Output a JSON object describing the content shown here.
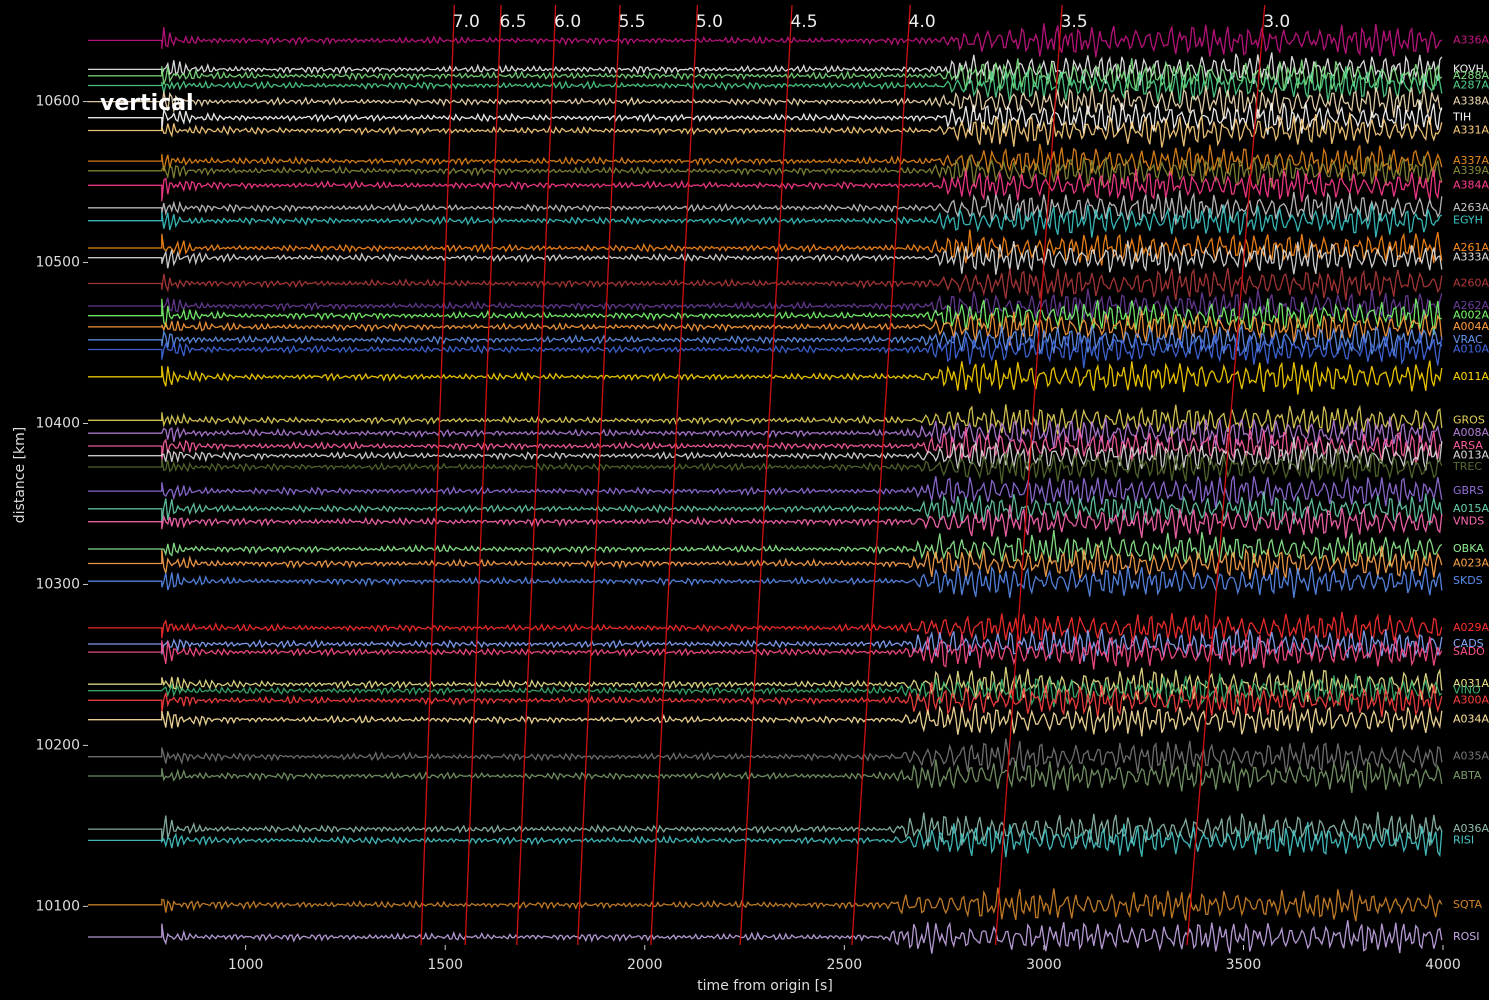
{
  "chart_data": {
    "type": "seismogram",
    "title": "vertical",
    "x_label": "time from origin [s]",
    "y_label": "distance [km]",
    "xlim": [
      605,
      4000
    ],
    "ylim": [
      10076,
      10660
    ],
    "xticks": [
      1000,
      1500,
      2000,
      2500,
      3000,
      3500,
      4000
    ],
    "yticks": [
      10100,
      10200,
      10300,
      10400,
      10500,
      10600
    ],
    "onset_time": 790,
    "moveout_color": "#d01010",
    "moveout_velocities": [
      {
        "value": 7,
        "label": "7.0"
      },
      {
        "value": 6.5,
        "label": "6.5"
      },
      {
        "value": 6,
        "label": "6.0"
      },
      {
        "value": 5.5,
        "label": "5.5"
      },
      {
        "value": 5,
        "label": "5.0"
      },
      {
        "value": 4.5,
        "label": "4.5"
      },
      {
        "value": 4,
        "label": "4.0"
      },
      {
        "value": 3.5,
        "label": "3.5"
      },
      {
        "value": 3,
        "label": "3.0"
      }
    ],
    "series": [
      {
        "name": "A336A",
        "color": "#c71585",
        "distance": 10638
      },
      {
        "name": "KOVH",
        "color": "#f0f0f0",
        "distance": 10620
      },
      {
        "name": "A288A",
        "color": "#7fe07f",
        "distance": 10616
      },
      {
        "name": "A287A",
        "color": "#4fd18b",
        "distance": 10610
      },
      {
        "name": "A338A",
        "color": "#f5deb3",
        "distance": 10600
      },
      {
        "name": "TIH",
        "color": "#ffffff",
        "distance": 10590
      },
      {
        "name": "A331A",
        "color": "#ffd27f",
        "distance": 10582
      },
      {
        "name": "A337A",
        "color": "#e8891c",
        "distance": 10563
      },
      {
        "name": "A339A",
        "color": "#8b8b3a",
        "distance": 10557
      },
      {
        "name": "A384A",
        "color": "#ff3c8e",
        "distance": 10548
      },
      {
        "name": "A263A",
        "color": "#c8c8c8",
        "distance": 10534
      },
      {
        "name": "EGYH",
        "color": "#3cc7c7",
        "distance": 10526
      },
      {
        "name": "A261A",
        "color": "#ff8c1a",
        "distance": 10509
      },
      {
        "name": "A333A",
        "color": "#e0e0e0",
        "distance": 10503
      },
      {
        "name": "A260A",
        "color": "#b03a3a",
        "distance": 10487
      },
      {
        "name": "A262A",
        "color": "#6a3d9a",
        "distance": 10473
      },
      {
        "name": "A002A",
        "color": "#7cfc70",
        "distance": 10467
      },
      {
        "name": "A004A",
        "color": "#ff9f40",
        "distance": 10460
      },
      {
        "name": "VRAC",
        "color": "#6495ed",
        "distance": 10452
      },
      {
        "name": "A010A",
        "color": "#4169e1",
        "distance": 10446
      },
      {
        "name": "A011A",
        "color": "#ffd700",
        "distance": 10429
      },
      {
        "name": "GROS",
        "color": "#e6d35a",
        "distance": 10402
      },
      {
        "name": "A008A",
        "color": "#b57edc",
        "distance": 10394
      },
      {
        "name": "ARSA",
        "color": "#ff5fa2",
        "distance": 10386
      },
      {
        "name": "A013A",
        "color": "#dddddd",
        "distance": 10380
      },
      {
        "name": "TREC",
        "color": "#556b2f",
        "distance": 10373
      },
      {
        "name": "GBRS",
        "color": "#9370db",
        "distance": 10358
      },
      {
        "name": "A015A",
        "color": "#66cdaa",
        "distance": 10347
      },
      {
        "name": "VNDS",
        "color": "#ff69b4",
        "distance": 10339
      },
      {
        "name": "OBKA",
        "color": "#90ee90",
        "distance": 10322
      },
      {
        "name": "A023A",
        "color": "#ffa54f",
        "distance": 10313
      },
      {
        "name": "SKDS",
        "color": "#5a8dee",
        "distance": 10302
      },
      {
        "name": "A029A",
        "color": "#ff3030",
        "distance": 10273
      },
      {
        "name": "CADS",
        "color": "#87a9ff",
        "distance": 10263
      },
      {
        "name": "SADO",
        "color": "#ff4f8a",
        "distance": 10258
      },
      {
        "name": "A031A",
        "color": "#f0e68c",
        "distance": 10238
      },
      {
        "name": "VINO",
        "color": "#3cb371",
        "distance": 10234
      },
      {
        "name": "A300A",
        "color": "#ff4040",
        "distance": 10228
      },
      {
        "name": "A034A",
        "color": "#ffe4a0",
        "distance": 10216
      },
      {
        "name": "A035A",
        "color": "#777777",
        "distance": 10193
      },
      {
        "name": "ABTA",
        "color": "#7a9a6a",
        "distance": 10181
      },
      {
        "name": "A036A",
        "color": "#8fbcae",
        "distance": 10148
      },
      {
        "name": "RISI",
        "color": "#48c9c9",
        "distance": 10141
      },
      {
        "name": "SQTA",
        "color": "#d2862a",
        "distance": 10101
      },
      {
        "name": "ROSI",
        "color": "#c8a8e8",
        "distance": 10081
      }
    ]
  }
}
